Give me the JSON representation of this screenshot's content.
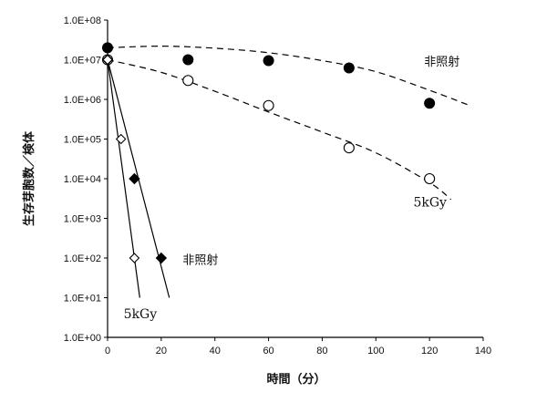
{
  "chart_data": {
    "type": "scatter",
    "xlabel": "時間（分）",
    "ylabel": "生存芽胞数／検体",
    "xlim": [
      0,
      140
    ],
    "ylim_log10": [
      0,
      8
    ],
    "y_scale": "log",
    "grid": false,
    "x_ticks": [
      "0",
      "20",
      "40",
      "60",
      "80",
      "100",
      "120",
      "140"
    ],
    "y_ticks": [
      "1.0E+00",
      "1.0E+01",
      "1.0E+02",
      "1.0E+03",
      "1.0E+04",
      "1.0E+05",
      "1.0E+06",
      "1.0E+07",
      "1.0E+08"
    ],
    "series": [
      {
        "name": "非照射",
        "marker": "filled-circle",
        "points": [
          [
            0,
            20000000
          ],
          [
            30,
            10000000
          ],
          [
            60,
            9500000
          ],
          [
            90,
            6200000
          ],
          [
            120,
            800000
          ]
        ],
        "trend": [
          [
            0,
            20000000
          ],
          [
            20,
            22000000
          ],
          [
            40,
            19500000
          ],
          [
            60,
            15000000
          ],
          [
            80,
            9500000
          ],
          [
            100,
            5000000
          ],
          [
            120,
            1700000
          ],
          [
            135,
            700000
          ]
        ]
      },
      {
        "name": "5kGy",
        "marker": "open-circle",
        "points": [
          [
            0,
            10000000
          ],
          [
            30,
            3000000
          ],
          [
            60,
            700000
          ],
          [
            90,
            60000
          ],
          [
            120,
            10000
          ]
        ],
        "trend": [
          [
            0,
            10000000
          ],
          [
            20,
            4800000
          ],
          [
            40,
            1600000
          ],
          [
            60,
            480000
          ],
          [
            80,
            150000
          ],
          [
            100,
            45000
          ],
          [
            120,
            8000
          ],
          [
            128,
            3000
          ]
        ]
      },
      {
        "name": "非照射",
        "marker": "filled-diamond",
        "points": [
          [
            0,
            10000000
          ],
          [
            10,
            10000
          ],
          [
            20,
            100
          ]
        ],
        "trend": [
          [
            0,
            10000000
          ],
          [
            23,
            10
          ]
        ]
      },
      {
        "name": "5kGy",
        "marker": "open-diamond",
        "points": [
          [
            0,
            10000000
          ],
          [
            5,
            100000
          ],
          [
            10,
            100
          ]
        ],
        "trend": [
          [
            0,
            10000000
          ],
          [
            12,
            10
          ]
        ]
      }
    ],
    "annotations": [
      {
        "text": "非照射",
        "x": 118,
        "y": 7000000
      },
      {
        "text": "5kGy",
        "x": 114,
        "y": 2000
      },
      {
        "text": "非照射",
        "x": 28,
        "y": 70
      },
      {
        "text": "5kGy",
        "x": 6,
        "y": 3
      }
    ]
  }
}
